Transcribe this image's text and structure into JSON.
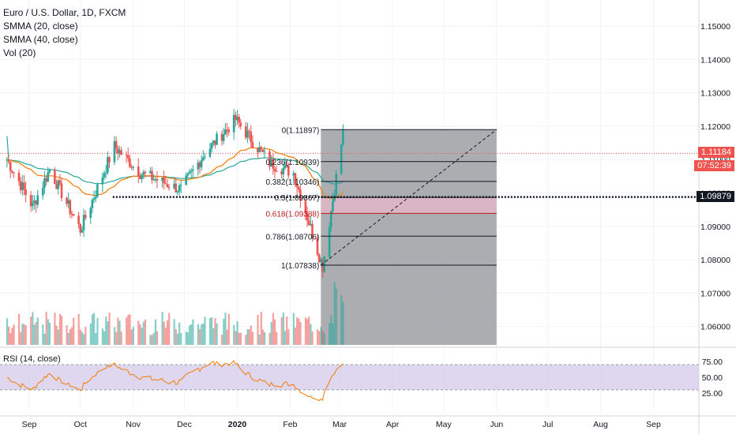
{
  "legend": {
    "symbol": "Euro / U.S. Dollar, 1D, FXCM",
    "smma20": "SMMA (20, close)",
    "smma40": "SMMA (40, close)",
    "vol": "Vol (20)"
  },
  "rsi_label": "RSI (14, close)",
  "price_axis": {
    "ticks": [
      "1.15000",
      "1.14000",
      "1.13000",
      "1.12000",
      "1.11000",
      "1.10000",
      "1.09000",
      "1.08000",
      "1.07000",
      "1.06000"
    ],
    "ticks_values": [
      1.15,
      1.14,
      1.13,
      1.12,
      1.11,
      1.1,
      1.09,
      1.08,
      1.07,
      1.06
    ],
    "current_price": "1.11184",
    "countdown": "07:52:39",
    "marked_price": "1.09879",
    "current_color": "#ef5350",
    "marked_color": "#131722"
  },
  "rsi_axis": {
    "ticks": [
      "75.00",
      "50.00",
      "25.00"
    ],
    "ticks_values": [
      75,
      50,
      25
    ]
  },
  "time_axis": [
    "Sep",
    "Oct",
    "Nov",
    "Dec",
    "2020",
    "Feb",
    "Mar",
    "Apr",
    "May",
    "Jun",
    "Jul",
    "Aug",
    "Sep"
  ],
  "fib_levels": [
    {
      "label": "0(1.11897)",
      "value": 1.11897,
      "color": "#131722"
    },
    {
      "label": "0.236(1.10939)",
      "value": 1.10939,
      "color": "#131722"
    },
    {
      "label": "0.382(1.10346)",
      "value": 1.10346,
      "color": "#131722"
    },
    {
      "label": "0.5(1.09867)",
      "value": 1.09867,
      "color": "#131722"
    },
    {
      "label": "0.618(1.09388)",
      "value": 1.09388,
      "color": "#b71c1c"
    },
    {
      "label": "0.786(1.08706)",
      "value": 1.08706,
      "color": "#131722"
    },
    {
      "label": "1(1.07838)",
      "value": 1.07838,
      "color": "#131722"
    }
  ],
  "colors": {
    "up": "#26a69a",
    "down": "#ef5350",
    "smma20": "#f57c00",
    "smma40": "#26a69a",
    "rsi_line": "#f57c00",
    "rsi_band": "#d1c4e9",
    "zone": "#9e9fa3"
  },
  "chart_data": {
    "type": "candlestick",
    "title": "Euro / U.S. Dollar, 1D, FXCM",
    "ylim": [
      1.0545,
      1.1578
    ],
    "anchors": [
      {
        "date": "2019-08-19",
        "close": 1.11
      },
      {
        "date": "2019-09-03",
        "close": 1.096
      },
      {
        "date": "2019-09-13",
        "close": 1.107
      },
      {
        "date": "2019-10-01",
        "close": 1.089
      },
      {
        "date": "2019-10-21",
        "close": 1.114
      },
      {
        "date": "2019-11-05",
        "close": 1.106
      },
      {
        "date": "2019-11-29",
        "close": 1.101
      },
      {
        "date": "2019-12-13",
        "close": 1.112
      },
      {
        "date": "2019-12-31",
        "close": 1.122
      },
      {
        "date": "2020-01-20",
        "close": 1.109
      },
      {
        "date": "2020-02-03",
        "close": 1.106
      },
      {
        "date": "2020-02-20",
        "close": 1.078
      },
      {
        "date": "2020-03-03",
        "close": 1.118
      }
    ]
  }
}
